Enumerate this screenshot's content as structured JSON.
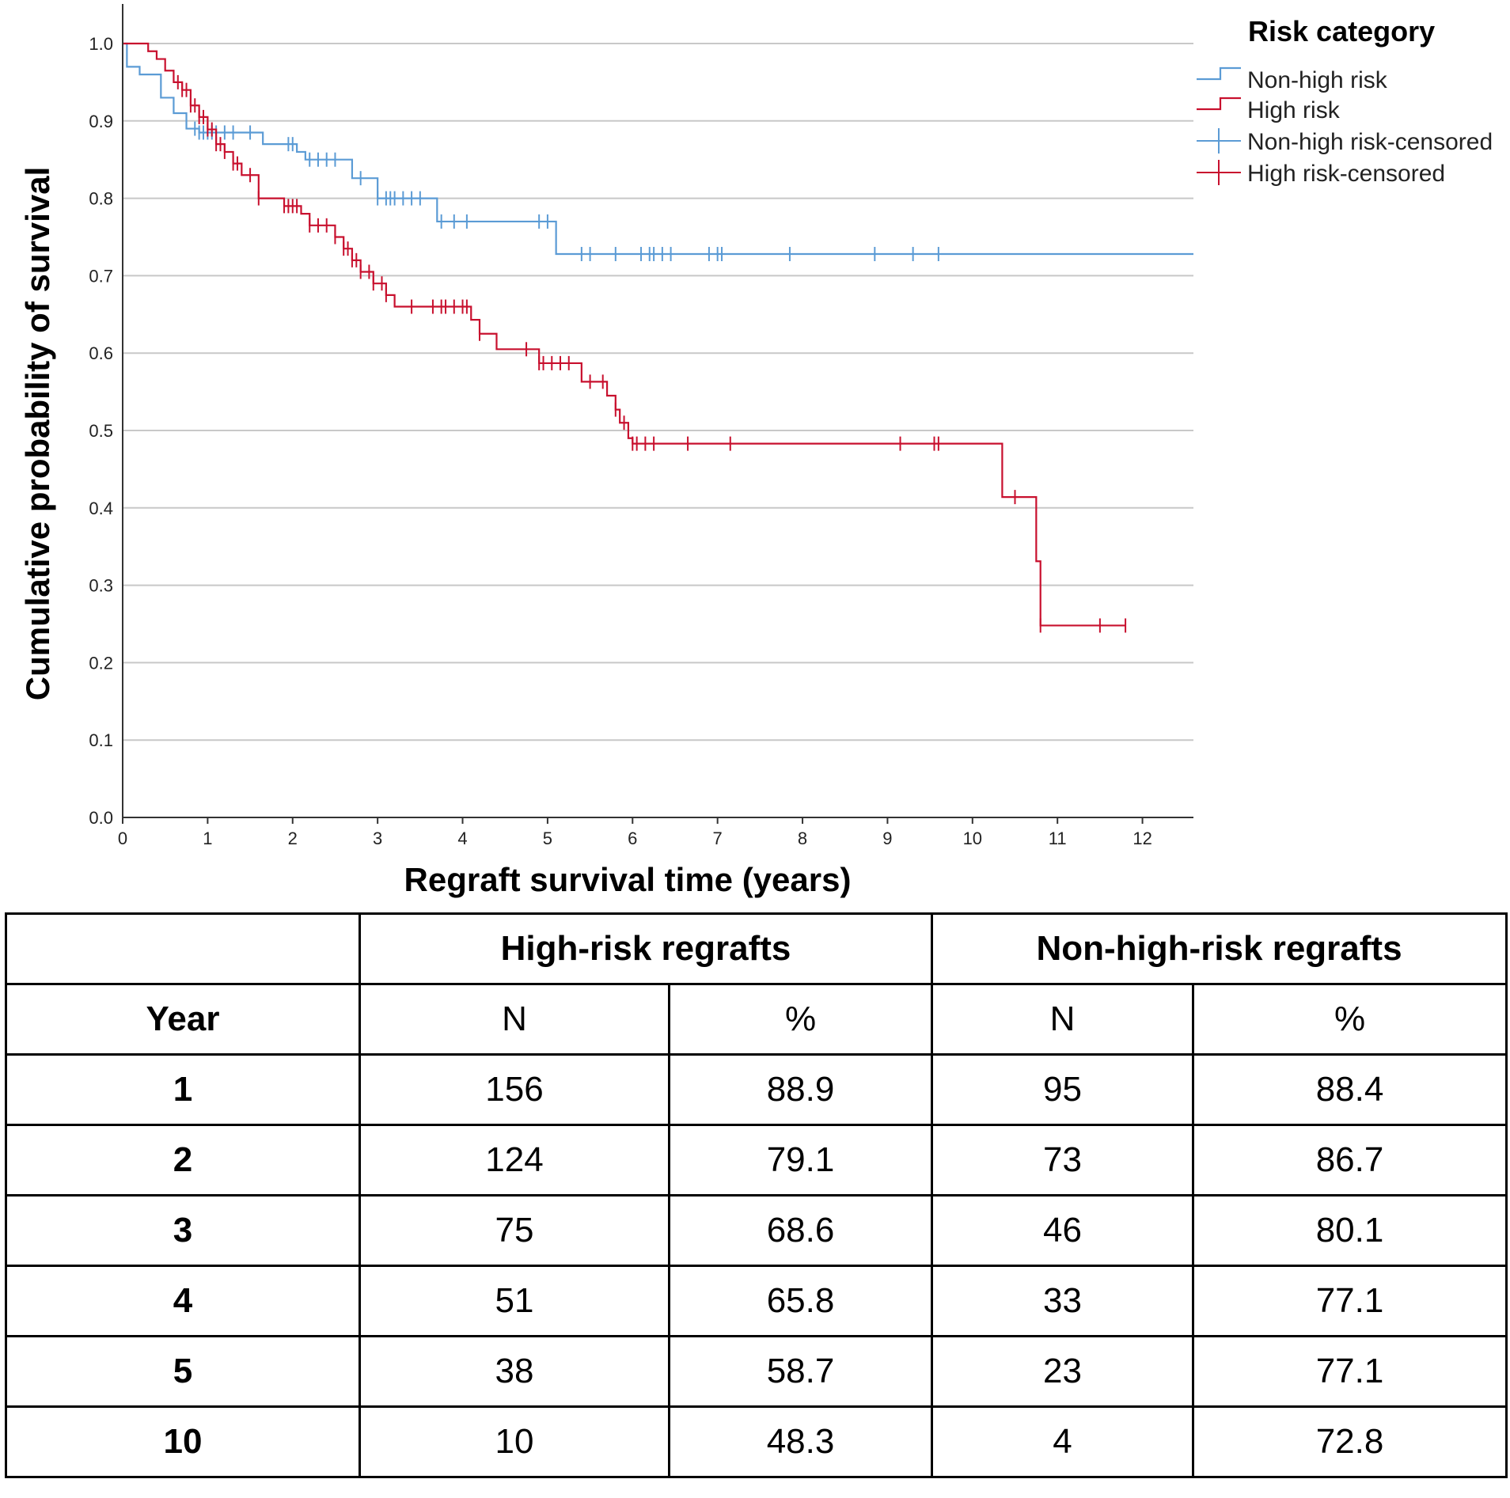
{
  "chart_data": {
    "type": "line",
    "subtype": "kaplan-meier step",
    "xlabel": "Regraft survival time (years)",
    "ylabel": "Cumulative probability of survival",
    "xlim": [
      0,
      12.6
    ],
    "ylim": [
      0,
      1.0
    ],
    "x_ticks": [
      "0",
      "1",
      "2",
      "3",
      "4",
      "5",
      "6",
      "7",
      "8",
      "9",
      "10",
      "11",
      "12"
    ],
    "y_ticks": [
      "0.0",
      "0.1",
      "0.2",
      "0.3",
      "0.4",
      "0.5",
      "0.6",
      "0.7",
      "0.8",
      "0.9",
      "1.0"
    ],
    "grid": "horizontal",
    "legend": {
      "title": "Risk category",
      "position": "top-right",
      "entries": [
        "Non-high risk",
        "High risk",
        "Non-high risk-censored",
        "High risk-censored"
      ]
    },
    "series": [
      {
        "name": "Non-high risk",
        "color": "#5b9bd5",
        "steps": [
          [
            0,
            1.0
          ],
          [
            0.05,
            0.97
          ],
          [
            0.2,
            0.96
          ],
          [
            0.45,
            0.93
          ],
          [
            0.6,
            0.91
          ],
          [
            0.75,
            0.89
          ],
          [
            0.9,
            0.885
          ],
          [
            1.5,
            0.885
          ],
          [
            1.65,
            0.87
          ],
          [
            2.05,
            0.86
          ],
          [
            2.15,
            0.85
          ],
          [
            2.7,
            0.826
          ],
          [
            3.0,
            0.8
          ],
          [
            3.7,
            0.77
          ],
          [
            5.1,
            0.728
          ],
          [
            12.6,
            0.728
          ]
        ],
        "censored": [
          0.85,
          0.9,
          0.95,
          1.0,
          1.05,
          1.1,
          1.2,
          1.3,
          1.5,
          1.95,
          2.0,
          2.2,
          2.3,
          2.4,
          2.5,
          2.8,
          3.0,
          3.1,
          3.15,
          3.2,
          3.3,
          3.4,
          3.5,
          3.75,
          3.9,
          4.05,
          4.9,
          5.0,
          5.4,
          5.5,
          5.8,
          6.1,
          6.2,
          6.25,
          6.35,
          6.45,
          6.9,
          7.0,
          7.05,
          7.85,
          8.85,
          9.3,
          9.6
        ]
      },
      {
        "name": "High risk",
        "color": "#c8102e",
        "steps": [
          [
            0,
            1.0
          ],
          [
            0.3,
            0.99
          ],
          [
            0.4,
            0.98
          ],
          [
            0.5,
            0.965
          ],
          [
            0.6,
            0.95
          ],
          [
            0.7,
            0.94
          ],
          [
            0.8,
            0.92
          ],
          [
            0.9,
            0.905
          ],
          [
            1.0,
            0.889
          ],
          [
            1.1,
            0.87
          ],
          [
            1.2,
            0.86
          ],
          [
            1.3,
            0.845
          ],
          [
            1.4,
            0.83
          ],
          [
            1.6,
            0.8
          ],
          [
            1.9,
            0.79
          ],
          [
            2.1,
            0.78
          ],
          [
            2.2,
            0.765
          ],
          [
            2.5,
            0.75
          ],
          [
            2.6,
            0.735
          ],
          [
            2.7,
            0.72
          ],
          [
            2.8,
            0.705
          ],
          [
            2.95,
            0.69
          ],
          [
            3.1,
            0.675
          ],
          [
            3.2,
            0.66
          ],
          [
            4.1,
            0.643
          ],
          [
            4.2,
            0.625
          ],
          [
            4.4,
            0.605
          ],
          [
            4.9,
            0.587
          ],
          [
            5.4,
            0.563
          ],
          [
            5.7,
            0.545
          ],
          [
            5.8,
            0.527
          ],
          [
            5.85,
            0.51
          ],
          [
            5.95,
            0.49
          ],
          [
            6.0,
            0.483
          ],
          [
            10.35,
            0.414
          ],
          [
            10.75,
            0.331
          ],
          [
            10.8,
            0.248
          ],
          [
            11.8,
            0.248
          ]
        ],
        "censored": [
          0.65,
          0.7,
          0.75,
          0.8,
          0.85,
          0.9,
          0.95,
          1.0,
          1.05,
          1.1,
          1.15,
          1.2,
          1.3,
          1.35,
          1.5,
          1.6,
          1.9,
          1.95,
          2.0,
          2.05,
          2.2,
          2.3,
          2.4,
          2.5,
          2.6,
          2.65,
          2.7,
          2.75,
          2.8,
          2.9,
          2.95,
          3.05,
          3.1,
          3.4,
          3.65,
          3.75,
          3.8,
          3.9,
          4.0,
          4.05,
          4.2,
          4.75,
          4.9,
          4.95,
          5.05,
          5.15,
          5.25,
          5.5,
          5.65,
          5.8,
          5.9,
          6.0,
          6.05,
          6.15,
          6.25,
          6.65,
          7.15,
          9.15,
          9.55,
          9.6,
          10.5,
          10.8,
          11.5,
          11.8
        ]
      }
    ]
  },
  "table": {
    "group_headers": [
      "High-risk regrafts",
      "Non-high-risk regrafts"
    ],
    "year_header": "Year",
    "sub_headers": [
      "N",
      "%",
      "N",
      "%"
    ],
    "rows": [
      {
        "year": "1",
        "hr_n": "156",
        "hr_pct": "88.9",
        "nhr_n": "95",
        "nhr_pct": "88.4"
      },
      {
        "year": "2",
        "hr_n": "124",
        "hr_pct": "79.1",
        "nhr_n": "73",
        "nhr_pct": "86.7"
      },
      {
        "year": "3",
        "hr_n": "75",
        "hr_pct": "68.6",
        "nhr_n": "46",
        "nhr_pct": "80.1"
      },
      {
        "year": "4",
        "hr_n": "51",
        "hr_pct": "65.8",
        "nhr_n": "33",
        "nhr_pct": "77.1"
      },
      {
        "year": "5",
        "hr_n": "38",
        "hr_pct": "58.7",
        "nhr_n": "23",
        "nhr_pct": "77.1"
      },
      {
        "year": "10",
        "hr_n": "10",
        "hr_pct": "48.3",
        "nhr_n": "4",
        "nhr_pct": "72.8"
      }
    ]
  }
}
